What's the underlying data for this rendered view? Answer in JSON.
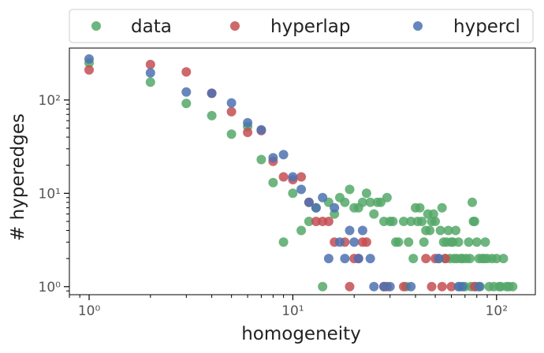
{
  "chart_data": {
    "type": "scatter",
    "xlabel": "homogeneity",
    "ylabel": "# hyperedges",
    "xscale": "log",
    "yscale": "log",
    "xlim": [
      0.8,
      155
    ],
    "ylim": [
      0.82,
      360
    ],
    "grid": false,
    "legend_placement": "top",
    "x_ticks": [
      {
        "value": 1,
        "label": "10⁰"
      },
      {
        "value": 10,
        "label": "10¹"
      },
      {
        "value": 100,
        "label": "10²"
      }
    ],
    "y_ticks": [
      {
        "value": 1,
        "label": "10⁰"
      },
      {
        "value": 10,
        "label": "10¹"
      },
      {
        "value": 100,
        "label": "10²"
      }
    ],
    "series": [
      {
        "name": "data",
        "color": "#55a868",
        "points": [
          [
            1,
            250
          ],
          [
            2,
            155
          ],
          [
            3,
            92
          ],
          [
            4,
            68
          ],
          [
            5,
            43
          ],
          [
            6,
            52
          ],
          [
            7,
            23
          ],
          [
            8,
            13
          ],
          [
            9,
            3
          ],
          [
            10,
            10
          ],
          [
            11,
            4
          ],
          [
            12,
            5
          ],
          [
            13,
            7
          ],
          [
            14,
            1
          ],
          [
            15,
            8
          ],
          [
            16,
            6
          ],
          [
            17,
            9
          ],
          [
            18,
            8
          ],
          [
            19,
            11
          ],
          [
            20,
            7
          ],
          [
            21,
            7
          ],
          [
            22,
            8
          ],
          [
            23,
            10
          ],
          [
            24,
            8
          ],
          [
            25,
            6
          ],
          [
            26,
            8
          ],
          [
            27,
            8
          ],
          [
            28,
            5
          ],
          [
            29,
            9
          ],
          [
            30,
            5
          ],
          [
            31,
            5
          ],
          [
            32,
            3
          ],
          [
            33,
            3
          ],
          [
            35,
            5
          ],
          [
            36,
            1
          ],
          [
            37,
            3
          ],
          [
            38,
            5
          ],
          [
            39,
            2
          ],
          [
            40,
            7
          ],
          [
            41,
            5
          ],
          [
            42,
            7
          ],
          [
            43,
            5
          ],
          [
            44,
            3
          ],
          [
            45,
            4
          ],
          [
            46,
            6
          ],
          [
            47,
            4
          ],
          [
            48,
            5
          ],
          [
            49,
            6
          ],
          [
            50,
            5
          ],
          [
            52,
            2
          ],
          [
            53,
            4
          ],
          [
            54,
            7
          ],
          [
            55,
            3
          ],
          [
            56,
            2
          ],
          [
            57,
            3
          ],
          [
            58,
            4
          ],
          [
            59,
            2
          ],
          [
            60,
            3
          ],
          [
            61,
            3
          ],
          [
            62,
            2
          ],
          [
            63,
            4
          ],
          [
            64,
            2
          ],
          [
            65,
            3
          ],
          [
            66,
            1
          ],
          [
            67,
            2
          ],
          [
            68,
            2
          ],
          [
            70,
            1
          ],
          [
            71,
            2
          ],
          [
            73,
            3
          ],
          [
            74,
            2
          ],
          [
            75,
            1
          ],
          [
            76,
            8
          ],
          [
            77,
            5
          ],
          [
            78,
            5
          ],
          [
            79,
            1
          ],
          [
            80,
            3
          ],
          [
            82,
            2
          ],
          [
            83,
            1
          ],
          [
            85,
            2
          ],
          [
            87,
            2
          ],
          [
            88,
            3
          ],
          [
            90,
            2
          ],
          [
            92,
            1
          ],
          [
            95,
            2
          ],
          [
            97,
            1
          ],
          [
            100,
            2
          ],
          [
            103,
            1
          ],
          [
            105,
            1
          ],
          [
            108,
            2
          ],
          [
            112,
            1
          ],
          [
            115,
            1
          ],
          [
            120,
            1
          ]
        ]
      },
      {
        "name": "hyperlap",
        "color": "#c44e52",
        "points": [
          [
            1,
            210
          ],
          [
            2,
            240
          ],
          [
            3,
            200
          ],
          [
            4,
            118
          ],
          [
            5,
            75
          ],
          [
            6,
            45
          ],
          [
            7,
            47
          ],
          [
            8,
            22
          ],
          [
            9,
            15
          ],
          [
            10,
            14
          ],
          [
            11,
            15
          ],
          [
            12,
            8
          ],
          [
            13,
            5
          ],
          [
            14,
            5
          ],
          [
            15,
            5
          ],
          [
            16,
            3
          ],
          [
            18,
            3
          ],
          [
            19,
            1
          ],
          [
            20,
            2
          ],
          [
            21,
            2
          ],
          [
            22,
            3
          ],
          [
            23,
            3
          ],
          [
            28,
            1
          ],
          [
            29,
            1
          ],
          [
            35,
            1
          ],
          [
            45,
            2
          ],
          [
            48,
            1
          ],
          [
            50,
            2
          ],
          [
            54,
            1
          ],
          [
            56,
            2
          ],
          [
            60,
            1
          ],
          [
            78,
            1
          ]
        ]
      },
      {
        "name": "hypercl",
        "color": "#4c72b0",
        "points": [
          [
            1,
            275
          ],
          [
            2,
            195
          ],
          [
            3,
            122
          ],
          [
            4,
            118
          ],
          [
            5,
            93
          ],
          [
            6,
            57
          ],
          [
            7,
            48
          ],
          [
            8,
            24
          ],
          [
            9,
            26
          ],
          [
            10,
            15
          ],
          [
            11,
            11
          ],
          [
            12,
            8
          ],
          [
            13,
            7
          ],
          [
            14,
            9
          ],
          [
            15,
            2
          ],
          [
            16,
            7
          ],
          [
            17,
            3
          ],
          [
            18,
            2
          ],
          [
            19,
            4
          ],
          [
            20,
            3
          ],
          [
            21,
            2
          ],
          [
            22,
            4
          ],
          [
            24,
            2
          ],
          [
            25,
            1
          ],
          [
            28,
            1
          ],
          [
            30,
            1
          ],
          [
            38,
            1
          ],
          [
            52,
            2
          ],
          [
            65,
            1
          ],
          [
            68,
            1
          ],
          [
            82,
            1
          ]
        ]
      }
    ]
  }
}
